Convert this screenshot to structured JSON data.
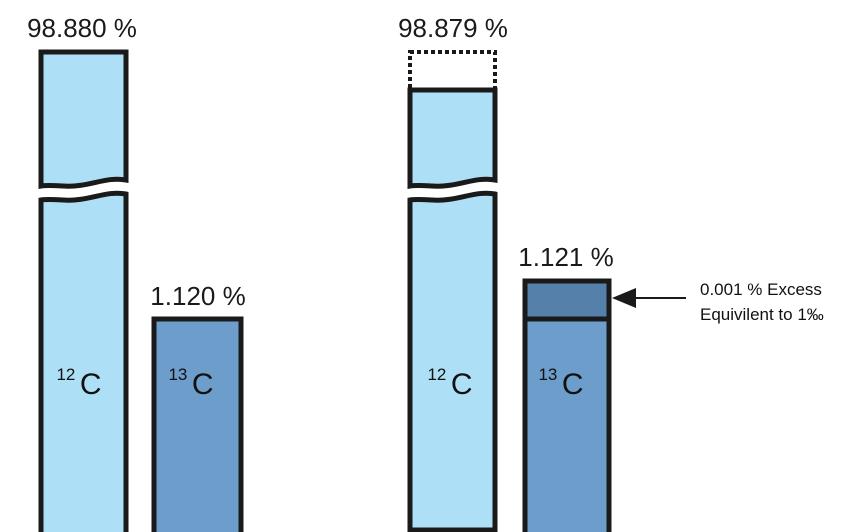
{
  "chart_data": [
    {
      "type": "bar",
      "categories": [
        "12C",
        "13C"
      ],
      "values": [
        98.88,
        1.12
      ],
      "value_labels": [
        "98.880 %",
        "1.120 %"
      ],
      "isotope_labels": [
        {
          "mass": "12",
          "element": "C"
        },
        {
          "mass": "13",
          "element": "C"
        }
      ],
      "broken_axis": true
    },
    {
      "type": "bar",
      "categories": [
        "12C",
        "13C"
      ],
      "values": [
        98.879,
        1.121
      ],
      "value_labels": [
        "98.879 %",
        "1.121 %"
      ],
      "isotope_labels": [
        {
          "mass": "12",
          "element": "C"
        },
        {
          "mass": "13",
          "element": "C"
        }
      ],
      "broken_axis": true,
      "excess": 0.001,
      "annotation": [
        "0.001 % Excess",
        "Equivilent to 1‰"
      ]
    }
  ],
  "colors": {
    "c12_fill": "#ade0f7",
    "c13_fill": "#6d9dcb",
    "excess_fill": "#5580a9",
    "outline": "#1a1a1a"
  }
}
